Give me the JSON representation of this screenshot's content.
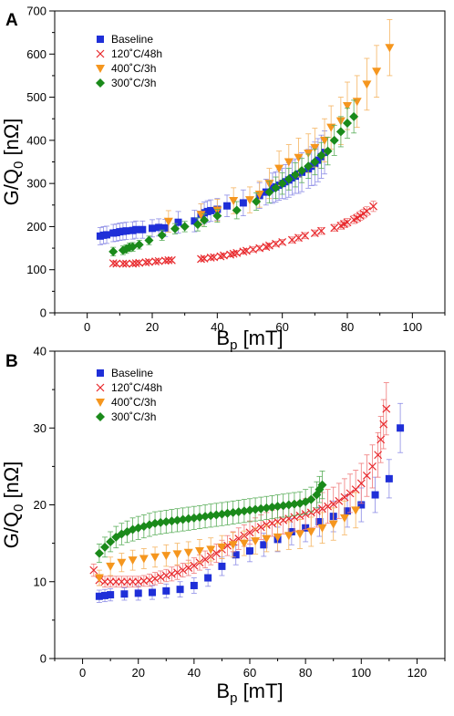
{
  "colors": {
    "baseline": "#1f2fd8",
    "c120": "#e8282c",
    "c400": "#f5961e",
    "c300": "#1a8a1a",
    "err_baseline": "#8c8ce6",
    "err_c120": "#f07a7a",
    "err_c400": "#f5b461",
    "err_c300": "#5aae5a"
  },
  "chart_data": [
    {
      "panel_label": "A",
      "type": "scatter",
      "xlabel": "B",
      "xlabel_sub": "p",
      "xlabel_unit": " [mT]",
      "ylabel": "G/Q",
      "ylabel_sub": "0",
      "ylabel_unit": " [nΩ]",
      "xlim": [
        -10,
        110
      ],
      "ylim": [
        0,
        700
      ],
      "xticks": [
        0,
        20,
        40,
        60,
        80,
        100
      ],
      "yticks": [
        0,
        100,
        200,
        300,
        400,
        500,
        600,
        700
      ],
      "legend_position": "top-left",
      "series": [
        {
          "name": "Baseline",
          "marker": "square",
          "color_key": "baseline",
          "err_key": "err_baseline",
          "x": [
            4,
            5,
            6,
            8,
            9,
            10,
            11,
            12,
            14,
            15,
            17,
            20,
            22,
            24,
            28,
            33,
            35,
            36,
            37,
            38,
            40,
            43,
            48,
            53,
            55,
            57,
            58,
            59,
            60,
            61,
            62,
            63,
            64,
            65,
            66,
            68,
            69,
            70,
            71,
            72,
            73
          ],
          "y": [
            178,
            180,
            181,
            185,
            186,
            188,
            189,
            190,
            191,
            193,
            193,
            196,
            198,
            197,
            210,
            213,
            228,
            232,
            235,
            237,
            240,
            248,
            255,
            272,
            280,
            289,
            292,
            296,
            300,
            304,
            308,
            313,
            317,
            322,
            326,
            334,
            340,
            346,
            354,
            362,
            372
          ],
          "err": [
            20,
            20,
            20,
            20,
            20,
            20,
            20,
            20,
            20,
            20,
            20,
            20,
            20,
            20,
            25,
            25,
            25,
            25,
            25,
            25,
            25,
            25,
            30,
            30,
            30,
            35,
            35,
            35,
            35,
            40,
            40,
            40,
            40,
            45,
            45,
            45,
            45,
            50,
            50,
            50,
            50
          ]
        },
        {
          "name": "120˚C/48h",
          "marker": "x",
          "color_key": "c120",
          "err_key": "err_c120",
          "x": [
            8,
            9,
            11,
            12,
            14,
            15,
            16,
            18,
            19,
            21,
            22,
            24,
            25,
            26,
            35,
            36,
            38,
            39,
            41,
            42,
            44,
            45,
            46,
            48,
            49,
            51,
            53,
            55,
            56,
            58,
            60,
            63,
            65,
            67,
            70,
            72,
            76,
            78,
            79,
            80,
            82,
            83,
            84,
            85,
            86,
            88
          ],
          "y": [
            115,
            114,
            114,
            114,
            114,
            115,
            116,
            117,
            118,
            119,
            120,
            121,
            122,
            122,
            125,
            126,
            128,
            129,
            131,
            133,
            135,
            137,
            139,
            142,
            144,
            147,
            150,
            153,
            156,
            160,
            164,
            169,
            174,
            179,
            185,
            190,
            197,
            202,
            206,
            210,
            216,
            220,
            225,
            230,
            236,
            247
          ],
          "err": [
            5,
            5,
            5,
            5,
            5,
            5,
            5,
            5,
            5,
            5,
            5,
            5,
            5,
            5,
            5,
            5,
            5,
            5,
            5,
            5,
            5,
            5,
            5,
            5,
            5,
            6,
            6,
            6,
            6,
            6,
            6,
            7,
            7,
            7,
            7,
            8,
            8,
            8,
            8,
            9,
            9,
            9,
            10,
            10,
            10,
            12
          ]
        },
        {
          "name": "400˚C/3h",
          "marker": "triangle-down",
          "color_key": "c400",
          "err_key": "err_c400",
          "x": [
            25,
            35,
            40,
            45,
            50,
            53,
            56,
            59,
            62,
            65,
            68,
            70,
            73,
            75,
            78,
            80,
            83,
            86,
            89,
            93
          ],
          "y": [
            212,
            228,
            238,
            260,
            262,
            275,
            300,
            335,
            350,
            360,
            370,
            383,
            400,
            430,
            445,
            480,
            490,
            530,
            560,
            615
          ],
          "err": [
            25,
            25,
            25,
            30,
            30,
            30,
            35,
            40,
            40,
            45,
            45,
            45,
            50,
            50,
            55,
            55,
            60,
            60,
            60,
            65
          ]
        },
        {
          "name": "300˚C/3h",
          "marker": "diamond",
          "color_key": "c300",
          "err_key": "err_c300",
          "x": [
            8,
            11,
            12,
            13,
            14,
            16,
            19,
            23,
            27,
            30,
            34,
            36,
            40,
            46,
            52,
            56,
            58,
            60,
            62,
            64,
            66,
            68,
            70,
            72,
            74,
            76,
            78,
            80,
            82
          ],
          "y": [
            142,
            145,
            148,
            152,
            153,
            158,
            168,
            180,
            195,
            200,
            205,
            215,
            225,
            238,
            258,
            280,
            290,
            300,
            310,
            320,
            330,
            340,
            350,
            365,
            375,
            400,
            420,
            440,
            455
          ],
          "err": [
            10,
            10,
            10,
            10,
            10,
            10,
            10,
            12,
            12,
            12,
            15,
            15,
            15,
            20,
            20,
            25,
            25,
            25,
            25,
            28,
            28,
            28,
            30,
            30,
            32,
            35,
            35,
            35,
            38
          ]
        }
      ]
    },
    {
      "panel_label": "B",
      "type": "scatter",
      "xlabel": "B",
      "xlabel_sub": "p",
      "xlabel_unit": " [mT]",
      "ylabel": "G/Q",
      "ylabel_sub": "0",
      "ylabel_unit": " [nΩ]",
      "xlim": [
        -10,
        130
      ],
      "ylim": [
        0,
        40
      ],
      "xticks": [
        0,
        20,
        40,
        60,
        80,
        100,
        120
      ],
      "yticks": [
        0,
        10,
        20,
        30,
        40
      ],
      "legend_position": "top-left",
      "series": [
        {
          "name": "Baseline",
          "marker": "square",
          "color_key": "baseline",
          "err_key": "err_baseline",
          "x": [
            6,
            8,
            10,
            15,
            20,
            25,
            30,
            35,
            40,
            45,
            50,
            55,
            60,
            65,
            70,
            75,
            80,
            85,
            90,
            95,
            100,
            105,
            110,
            114
          ],
          "y": [
            8.1,
            8.2,
            8.3,
            8.4,
            8.5,
            8.6,
            8.8,
            9.0,
            9.5,
            10.5,
            12.0,
            13.5,
            14.0,
            14.8,
            15.5,
            16.5,
            17.0,
            17.8,
            18.5,
            19.2,
            20.0,
            21.3,
            23.4,
            30.0
          ],
          "err": [
            0.8,
            0.8,
            0.8,
            0.8,
            0.9,
            0.9,
            0.9,
            1.0,
            1.0,
            1.1,
            1.2,
            1.3,
            1.4,
            1.5,
            1.6,
            1.7,
            1.8,
            1.9,
            2.0,
            2.1,
            2.2,
            2.3,
            2.5,
            3.2
          ]
        },
        {
          "name": "120˚C/48h",
          "marker": "x",
          "color_key": "c120",
          "err_key": "err_c120",
          "x": [
            4,
            6,
            8,
            10,
            12,
            14,
            16,
            18,
            20,
            22,
            24,
            26,
            28,
            30,
            32,
            34,
            36,
            38,
            40,
            42,
            44,
            46,
            48,
            50,
            52,
            54,
            56,
            58,
            60,
            62,
            64,
            66,
            68,
            70,
            72,
            74,
            76,
            78,
            80,
            82,
            84,
            86,
            88,
            90,
            92,
            94,
            96,
            98,
            100,
            102,
            104,
            106,
            107,
            108,
            109
          ],
          "y": [
            11.5,
            10.2,
            10.0,
            10.0,
            10.0,
            10.0,
            10.0,
            10.0,
            10.0,
            10.1,
            10.2,
            10.4,
            10.6,
            10.8,
            11.0,
            11.2,
            11.5,
            11.8,
            12.1,
            12.5,
            12.9,
            13.3,
            13.7,
            14.2,
            14.7,
            15.2,
            15.6,
            16.0,
            16.4,
            16.8,
            17.1,
            17.4,
            17.6,
            17.8,
            18.0,
            18.2,
            18.4,
            18.6,
            18.8,
            19.0,
            19.2,
            19.5,
            19.8,
            20.1,
            20.5,
            21.0,
            21.5,
            22.0,
            22.8,
            23.8,
            25.0,
            26.5,
            28.5,
            30.5,
            32.5
          ],
          "err": [
            0.8,
            0.7,
            0.7,
            0.7,
            0.7,
            0.7,
            0.7,
            0.7,
            0.7,
            0.7,
            0.8,
            0.8,
            0.8,
            0.8,
            0.9,
            0.9,
            0.9,
            1.0,
            1.0,
            1.0,
            1.1,
            1.1,
            1.2,
            1.2,
            1.3,
            1.3,
            1.4,
            1.4,
            1.5,
            1.5,
            1.6,
            1.6,
            1.7,
            1.7,
            1.8,
            1.8,
            1.9,
            1.9,
            2.0,
            2.0,
            2.1,
            2.1,
            2.2,
            2.2,
            2.3,
            2.4,
            2.5,
            2.5,
            2.6,
            2.7,
            2.8,
            2.9,
            3.0,
            3.2,
            3.4
          ]
        },
        {
          "name": "400˚C/3h",
          "marker": "triangle-down",
          "color_key": "c400",
          "err_key": "err_c400",
          "x": [
            6,
            10,
            14,
            18,
            22,
            26,
            30,
            34,
            38,
            42,
            46,
            50,
            54,
            58,
            62,
            66,
            70,
            74,
            78,
            82,
            86,
            90,
            94,
            98
          ],
          "y": [
            10.5,
            12.0,
            12.5,
            12.8,
            13.0,
            13.2,
            13.4,
            13.6,
            13.8,
            14.0,
            14.2,
            14.5,
            14.8,
            15.0,
            15.3,
            15.6,
            15.8,
            16.0,
            16.2,
            16.5,
            17.0,
            17.5,
            18.3,
            19.3
          ],
          "err": [
            1.0,
            1.2,
            1.2,
            1.3,
            1.3,
            1.3,
            1.4,
            1.4,
            1.4,
            1.5,
            1.5,
            1.5,
            1.6,
            1.6,
            1.7,
            1.7,
            1.8,
            1.8,
            1.9,
            1.9,
            2.0,
            2.1,
            2.2,
            2.3
          ]
        },
        {
          "name": "300˚C/3h",
          "marker": "diamond",
          "color_key": "c300",
          "err_key": "err_c300",
          "x": [
            6,
            8,
            10,
            12,
            14,
            16,
            18,
            20,
            22,
            24,
            26,
            28,
            30,
            32,
            34,
            36,
            38,
            40,
            42,
            44,
            46,
            48,
            50,
            52,
            54,
            56,
            58,
            60,
            62,
            64,
            66,
            68,
            70,
            72,
            74,
            76,
            78,
            80,
            82,
            84,
            85,
            86
          ],
          "y": [
            13.7,
            14.5,
            15.2,
            15.8,
            16.2,
            16.5,
            16.8,
            17.0,
            17.2,
            17.4,
            17.6,
            17.7,
            17.8,
            17.9,
            18.0,
            18.1,
            18.2,
            18.3,
            18.4,
            18.5,
            18.6,
            18.7,
            18.8,
            18.9,
            19.0,
            19.1,
            19.2,
            19.3,
            19.4,
            19.5,
            19.6,
            19.7,
            19.8,
            19.9,
            20.0,
            20.1,
            20.2,
            20.4,
            20.7,
            21.3,
            22.0,
            22.6
          ],
          "err": [
            1.2,
            1.3,
            1.3,
            1.4,
            1.4,
            1.4,
            1.5,
            1.5,
            1.5,
            1.5,
            1.5,
            1.5,
            1.5,
            1.5,
            1.5,
            1.5,
            1.5,
            1.5,
            1.5,
            1.5,
            1.5,
            1.5,
            1.5,
            1.5,
            1.5,
            1.5,
            1.5,
            1.5,
            1.5,
            1.5,
            1.5,
            1.5,
            1.5,
            1.5,
            1.5,
            1.5,
            1.5,
            1.6,
            1.6,
            1.7,
            1.7,
            1.8
          ]
        }
      ]
    }
  ]
}
